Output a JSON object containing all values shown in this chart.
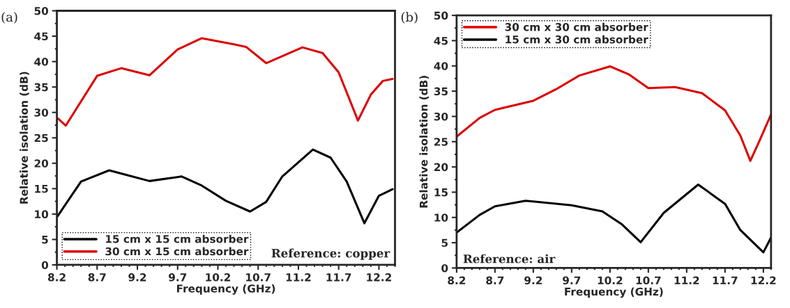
{
  "chart_data": [
    {
      "type": "line",
      "xlabel": "Frequency (GHz)",
      "ylabel": "Relative isolation (dB)",
      "xlim": [
        8.2,
        12.4
      ],
      "ylim": [
        0,
        50
      ],
      "xticks": [
        8.2,
        8.7,
        9.2,
        9.7,
        10.2,
        10.7,
        11.2,
        11.7,
        12.2
      ],
      "yticks": [
        0,
        5,
        10,
        15,
        20,
        25,
        30,
        35,
        40,
        45,
        50
      ],
      "legend": "bottom left",
      "grid": false,
      "annotations": [
        "(a)",
        "Reference: copper"
      ],
      "series": [
        {
          "name": "15 cm x 15 cm absorber",
          "color": "#000000",
          "x": [
            8.2,
            8.5,
            8.85,
            9.35,
            9.75,
            10.0,
            10.3,
            10.6,
            10.8,
            11.0,
            11.38,
            11.6,
            11.8,
            12.02,
            12.2,
            12.37
          ],
          "values": [
            9.4,
            16.4,
            18.6,
            16.5,
            17.4,
            15.6,
            12.6,
            10.5,
            12.4,
            17.4,
            22.7,
            21.1,
            16.4,
            8.2,
            13.6,
            14.9
          ]
        },
        {
          "name": "30 cm x 15 cm absorber",
          "color": "#dd0000",
          "x": [
            8.2,
            8.31,
            8.7,
            9.0,
            9.35,
            9.7,
            10.0,
            10.4,
            10.55,
            10.8,
            11.25,
            11.5,
            11.7,
            11.94,
            12.1,
            12.25,
            12.37
          ],
          "values": [
            29.0,
            27.4,
            37.2,
            38.7,
            37.3,
            42.4,
            44.6,
            43.4,
            42.9,
            39.7,
            42.8,
            41.7,
            37.9,
            28.4,
            33.5,
            36.2,
            36.6
          ]
        }
      ]
    },
    {
      "type": "line",
      "xlabel": "Frequency (GHz)",
      "ylabel": "Relative isolation (dB)",
      "xlim": [
        8.2,
        12.3
      ],
      "ylim": [
        0,
        50
      ],
      "xticks": [
        8.2,
        8.7,
        9.2,
        9.7,
        10.2,
        10.7,
        11.2,
        11.7,
        12.2
      ],
      "yticks": [
        0,
        5,
        10,
        15,
        20,
        25,
        30,
        35,
        40,
        45,
        50
      ],
      "legend": "top left",
      "grid": false,
      "annotations": [
        "(b)",
        "Reference: air"
      ],
      "series": [
        {
          "name": "30 cm x 30 cm absorber",
          "color": "#dd0000",
          "x": [
            8.2,
            8.5,
            8.7,
            9.2,
            9.5,
            9.8,
            10.2,
            10.45,
            10.7,
            11.05,
            11.4,
            11.7,
            11.9,
            12.03,
            12.15,
            12.3
          ],
          "values": [
            26.0,
            29.7,
            31.3,
            33.1,
            35.4,
            38.1,
            39.9,
            38.3,
            35.6,
            35.8,
            34.6,
            31.2,
            26.2,
            21.2,
            25.2,
            30.4
          ]
        },
        {
          "name": "15 cm x 30 cm absorber",
          "color": "#000000",
          "x": [
            8.2,
            8.5,
            8.7,
            9.1,
            9.7,
            10.1,
            10.35,
            10.6,
            10.9,
            11.35,
            11.7,
            11.9,
            12.2,
            12.3
          ],
          "values": [
            7.0,
            10.5,
            12.2,
            13.3,
            12.4,
            11.2,
            8.7,
            5.1,
            10.9,
            16.5,
            12.7,
            7.5,
            3.1,
            6.0
          ]
        }
      ]
    }
  ]
}
